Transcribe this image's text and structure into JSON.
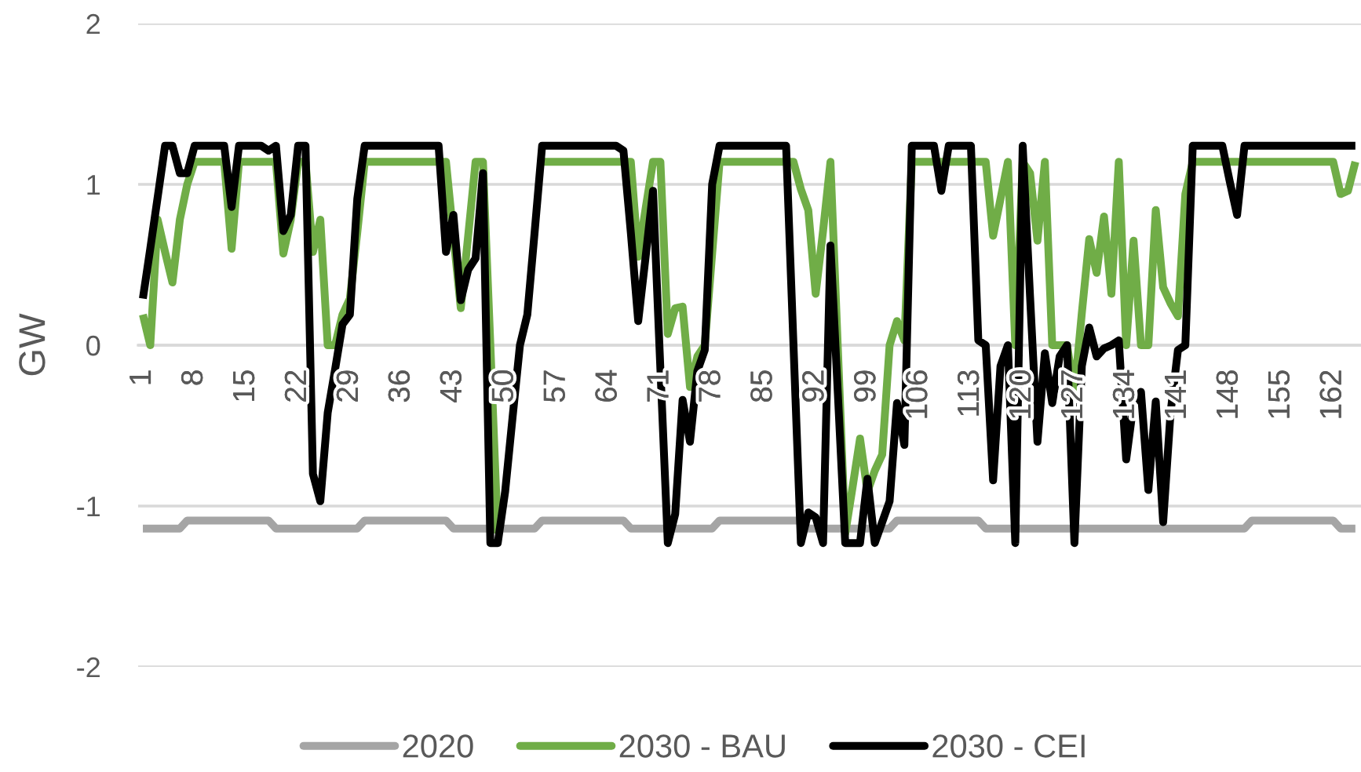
{
  "chart_data": {
    "type": "line",
    "ylabel": "GW",
    "categories": [
      "1",
      null,
      null,
      null,
      null,
      null,
      null,
      "8",
      null,
      null,
      null,
      null,
      null,
      null,
      "15",
      null,
      null,
      null,
      null,
      null,
      null,
      "22",
      null,
      null,
      null,
      null,
      null,
      null,
      "29",
      null,
      null,
      null,
      null,
      null,
      null,
      "36",
      null,
      null,
      null,
      null,
      null,
      null,
      "43",
      null,
      null,
      null,
      null,
      null,
      null,
      "50",
      null,
      null,
      null,
      null,
      null,
      null,
      "57",
      null,
      null,
      null,
      null,
      null,
      null,
      "64",
      null,
      null,
      null,
      null,
      null,
      null,
      "71",
      null,
      null,
      null,
      null,
      null,
      null,
      "78",
      null,
      null,
      null,
      null,
      null,
      null,
      "85",
      null,
      null,
      null,
      null,
      null,
      null,
      "92",
      null,
      null,
      null,
      null,
      null,
      null,
      "99",
      null,
      null,
      null,
      null,
      null,
      null,
      "106",
      null,
      null,
      null,
      null,
      null,
      null,
      "113",
      null,
      null,
      null,
      null,
      null,
      null,
      "120",
      null,
      null,
      null,
      null,
      null,
      null,
      "127",
      null,
      null,
      null,
      null,
      null,
      null,
      "134",
      null,
      null,
      null,
      null,
      null,
      null,
      "141",
      null,
      null,
      null,
      null,
      null,
      null,
      "148",
      null,
      null,
      null,
      null,
      null,
      null,
      "155",
      null,
      null,
      null,
      null,
      null,
      null,
      "162",
      null,
      null,
      null
    ],
    "series": [
      {
        "name": "2020",
        "color": "#a5a5a5",
        "values": [
          -1.14,
          -1.14,
          -1.14,
          -1.14,
          -1.14,
          -1.14,
          -1.09,
          -1.09,
          -1.09,
          -1.09,
          -1.09,
          -1.09,
          -1.09,
          -1.09,
          -1.09,
          -1.09,
          -1.09,
          -1.09,
          -1.14,
          -1.14,
          -1.14,
          -1.14,
          -1.14,
          -1.14,
          -1.14,
          -1.14,
          -1.14,
          -1.14,
          -1.14,
          -1.14,
          -1.09,
          -1.09,
          -1.09,
          -1.09,
          -1.09,
          -1.09,
          -1.09,
          -1.09,
          -1.09,
          -1.09,
          -1.09,
          -1.09,
          -1.14,
          -1.14,
          -1.14,
          -1.14,
          -1.14,
          -1.14,
          -1.14,
          -1.14,
          -1.14,
          -1.14,
          -1.14,
          -1.14,
          -1.09,
          -1.09,
          -1.09,
          -1.09,
          -1.09,
          -1.09,
          -1.09,
          -1.09,
          -1.09,
          -1.09,
          -1.09,
          -1.09,
          -1.14,
          -1.14,
          -1.14,
          -1.14,
          -1.14,
          -1.14,
          -1.14,
          -1.14,
          -1.14,
          -1.14,
          -1.14,
          -1.14,
          -1.09,
          -1.09,
          -1.09,
          -1.09,
          -1.09,
          -1.09,
          -1.09,
          -1.09,
          -1.09,
          -1.09,
          -1.09,
          -1.09,
          -1.14,
          -1.14,
          -1.14,
          -1.14,
          -1.14,
          -1.14,
          -1.14,
          -1.14,
          -1.14,
          -1.14,
          -1.14,
          -1.14,
          -1.09,
          -1.09,
          -1.09,
          -1.09,
          -1.09,
          -1.09,
          -1.09,
          -1.09,
          -1.09,
          -1.09,
          -1.09,
          -1.09,
          -1.14,
          -1.14,
          -1.14,
          -1.14,
          -1.14,
          -1.14,
          -1.14,
          -1.14,
          -1.14,
          -1.14,
          -1.14,
          -1.14,
          -1.14,
          -1.14,
          -1.14,
          -1.14,
          -1.14,
          -1.14,
          -1.14,
          -1.14,
          -1.14,
          -1.14,
          -1.14,
          -1.14,
          -1.14,
          -1.14,
          -1.14,
          -1.14,
          -1.14,
          -1.14,
          -1.14,
          -1.14,
          -1.14,
          -1.14,
          -1.14,
          -1.14,
          -1.09,
          -1.09,
          -1.09,
          -1.09,
          -1.09,
          -1.09,
          -1.09,
          -1.09,
          -1.09,
          -1.09,
          -1.09,
          -1.09,
          -1.14,
          -1.14,
          -1.14
        ]
      },
      {
        "name": "2030 - BAU",
        "color": "#70ad47",
        "values": [
          0.19,
          0.0,
          0.78,
          0.58,
          0.39,
          0.78,
          1.0,
          1.14,
          1.14,
          1.14,
          1.14,
          1.14,
          0.6,
          1.14,
          1.14,
          1.14,
          1.14,
          1.14,
          1.14,
          0.57,
          0.78,
          1.14,
          1.14,
          0.58,
          0.78,
          0.0,
          0.0,
          0.19,
          0.29,
          0.7,
          1.14,
          1.14,
          1.14,
          1.14,
          1.14,
          1.14,
          1.14,
          1.14,
          1.14,
          1.14,
          1.14,
          1.14,
          0.68,
          0.23,
          0.68,
          1.14,
          1.14,
          0.0,
          -1.17,
          null,
          null,
          null,
          null,
          null,
          1.14,
          1.14,
          1.14,
          1.14,
          1.14,
          1.14,
          1.14,
          1.14,
          1.14,
          1.14,
          1.14,
          1.14,
          1.14,
          0.55,
          0.85,
          1.14,
          1.14,
          0.07,
          0.23,
          0.24,
          -0.26,
          -0.07,
          0.0,
          0.57,
          1.14,
          1.14,
          1.14,
          1.14,
          1.14,
          1.14,
          1.14,
          1.14,
          1.14,
          1.14,
          1.14,
          0.97,
          0.84,
          0.32,
          0.71,
          1.14,
          -0.02,
          -1.17,
          -0.88,
          -0.58,
          -0.91,
          -0.78,
          -0.68,
          0.0,
          0.15,
          0.03,
          1.14,
          1.14,
          1.14,
          1.14,
          1.14,
          1.14,
          1.14,
          1.14,
          1.14,
          1.14,
          1.14,
          0.68,
          0.91,
          1.14,
          0.0,
          1.14,
          1.07,
          0.65,
          1.14,
          0.0,
          0.0,
          0.0,
          -0.29,
          0.2,
          0.66,
          0.45,
          0.8,
          0.32,
          1.14,
          0.0,
          0.65,
          0.0,
          0.0,
          0.84,
          0.36,
          0.26,
          0.18,
          0.94,
          1.14,
          1.14,
          1.14,
          1.14,
          1.14,
          1.14,
          1.14,
          1.14,
          1.14,
          1.14,
          1.14,
          1.14,
          1.14,
          1.14,
          1.14,
          1.14,
          1.14,
          1.14,
          1.14,
          1.14,
          0.94,
          0.96,
          1.14
        ]
      },
      {
        "name": "2030 - CEI",
        "color": "#000000",
        "values": [
          0.29,
          0.6,
          0.92,
          1.24,
          1.24,
          1.07,
          1.07,
          1.24,
          1.24,
          1.24,
          1.24,
          1.24,
          0.86,
          1.24,
          1.24,
          1.24,
          1.24,
          1.21,
          1.24,
          0.71,
          0.81,
          1.24,
          1.24,
          -0.8,
          -0.97,
          -0.42,
          -0.15,
          0.13,
          0.19,
          0.91,
          1.24,
          1.24,
          1.24,
          1.24,
          1.24,
          1.24,
          1.24,
          1.24,
          1.24,
          1.24,
          1.24,
          0.58,
          0.81,
          0.28,
          0.47,
          0.54,
          1.07,
          -1.23,
          -1.23,
          -0.91,
          -0.45,
          0.0,
          0.19,
          0.71,
          1.24,
          1.24,
          1.24,
          1.24,
          1.24,
          1.24,
          1.24,
          1.24,
          1.24,
          1.24,
          1.24,
          1.21,
          0.7,
          0.15,
          0.55,
          0.96,
          -0.15,
          -1.23,
          -1.05,
          -0.34,
          -0.6,
          -0.16,
          -0.03,
          1.0,
          1.24,
          1.24,
          1.24,
          1.24,
          1.24,
          1.24,
          1.24,
          1.24,
          1.24,
          1.24,
          0.0,
          -1.23,
          -1.04,
          -1.07,
          -1.23,
          0.62,
          -0.3,
          -1.23,
          -1.23,
          -1.23,
          -0.83,
          -1.23,
          -1.1,
          -0.97,
          -0.36,
          -0.62,
          1.24,
          1.24,
          1.24,
          1.24,
          0.96,
          1.24,
          1.24,
          1.24,
          1.24,
          0.03,
          0.0,
          -0.84,
          -0.13,
          0.0,
          -1.23,
          1.24,
          0.3,
          -0.6,
          -0.05,
          -0.36,
          -0.07,
          0.0,
          -1.23,
          -0.13,
          0.11,
          -0.07,
          -0.02,
          0.0,
          0.03,
          -0.71,
          -0.36,
          -0.29,
          -0.9,
          -0.35,
          -1.1,
          -0.42,
          -0.03,
          0.0,
          1.24,
          1.24,
          1.24,
          1.24,
          1.24,
          1.02,
          0.81,
          1.24,
          1.24,
          1.24,
          1.24,
          1.24,
          1.24,
          1.24,
          1.24,
          1.24,
          1.24,
          1.24,
          1.24,
          1.24,
          1.24,
          1.24,
          1.24
        ]
      }
    ],
    "ylim": [
      -2,
      2
    ],
    "yticks": [
      -2,
      -1,
      0,
      1,
      2
    ],
    "grid": "y",
    "legend": "bottom"
  }
}
